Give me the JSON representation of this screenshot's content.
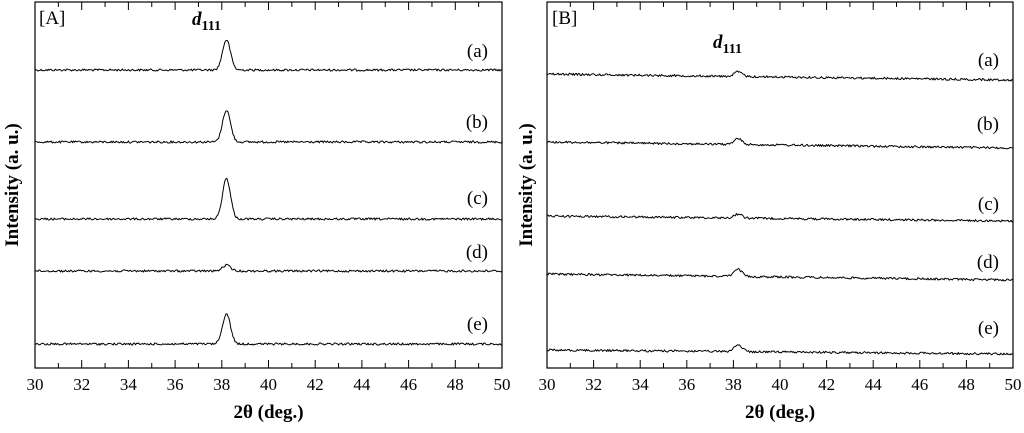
{
  "chart_data": [
    {
      "type": "line",
      "panel_label": "[A]",
      "xlabel": "2θ (deg.)",
      "ylabel": "Intensity (a. u.)",
      "xlim": [
        30,
        50
      ],
      "xticks": [
        "30",
        "32",
        "34",
        "36",
        "38",
        "40",
        "42",
        "44",
        "46",
        "48",
        "50"
      ],
      "yaxis_ticks": "none",
      "annotation": {
        "text": "d",
        "subscript": "111",
        "x": 38.2
      },
      "series": [
        {
          "name": "(a)",
          "peak_center": 38.2,
          "relative_peak_height": 0.52
        },
        {
          "name": "(b)",
          "peak_center": 38.2,
          "relative_peak_height": 0.55
        },
        {
          "name": "(c)",
          "peak_center": 38.2,
          "relative_peak_height": 0.7
        },
        {
          "name": "(d)",
          "peak_center": 38.2,
          "relative_peak_height": 0.1
        },
        {
          "name": "(e)",
          "peak_center": 38.2,
          "relative_peak_height": 0.52
        }
      ]
    },
    {
      "type": "line",
      "panel_label": "[B]",
      "xlabel": "2θ (deg.)",
      "ylabel": "Intensity (a. u.)",
      "xlim": [
        30,
        50
      ],
      "xticks": [
        "30",
        "32",
        "34",
        "36",
        "38",
        "40",
        "42",
        "44",
        "46",
        "48",
        "50"
      ],
      "yaxis_ticks": "none",
      "annotation": {
        "text": "d",
        "subscript": "111",
        "x": 38.2
      },
      "series": [
        {
          "name": "(a)",
          "peak_center": 38.2,
          "relative_peak_height": 0.08
        },
        {
          "name": "(b)",
          "peak_center": 38.2,
          "relative_peak_height": 0.1
        },
        {
          "name": "(c)",
          "peak_center": 38.2,
          "relative_peak_height": 0.07
        },
        {
          "name": "(d)",
          "peak_center": 38.2,
          "relative_peak_height": 0.12
        },
        {
          "name": "(e)",
          "peak_center": 38.2,
          "relative_peak_height": 0.12
        }
      ]
    }
  ]
}
